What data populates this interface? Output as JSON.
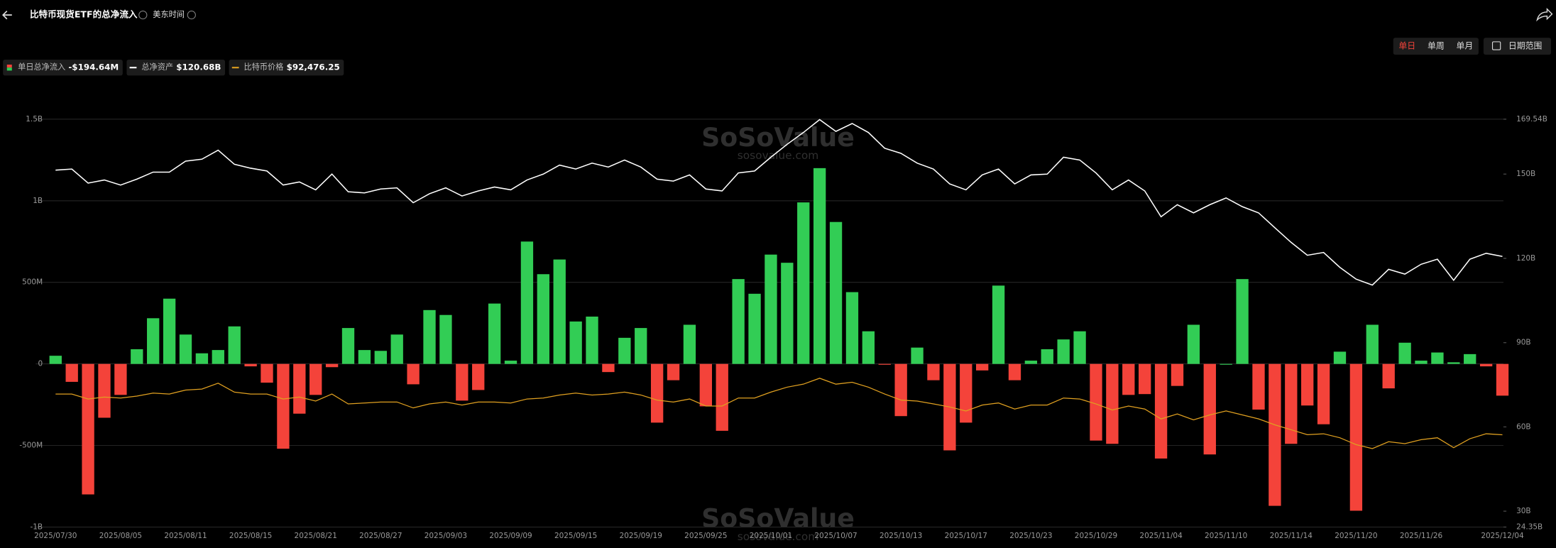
{
  "header": {
    "title": "比特币现货ETF的总净流入",
    "timezone": "美东时间"
  },
  "controls": {
    "periods": [
      "单日",
      "单周",
      "单月"
    ],
    "date_range": "日期范围"
  },
  "watermark": {
    "brand": "SoSoValue",
    "url": "sosovalue.com"
  },
  "chart_data": {
    "type": "bar",
    "categories": [
      "2025/07/30",
      null,
      null,
      null,
      "2025/08/05",
      null,
      null,
      null,
      "2025/08/11",
      null,
      null,
      null,
      "2025/08/15",
      null,
      null,
      null,
      "2025/08/21",
      null,
      null,
      null,
      "2025/08/27",
      null,
      null,
      null,
      "2025/09/03",
      null,
      null,
      null,
      "2025/09/09",
      null,
      null,
      null,
      "2025/09/15",
      null,
      null,
      null,
      "2025/09/19",
      null,
      null,
      null,
      "2025/09/25",
      null,
      null,
      null,
      "2025/10/01",
      null,
      null,
      null,
      "2025/10/07",
      null,
      null,
      null,
      "2025/10/13",
      null,
      null,
      null,
      "2025/10/17",
      null,
      null,
      null,
      "2025/10/23",
      null,
      null,
      null,
      "2025/10/29",
      null,
      null,
      null,
      "2025/11/04",
      null,
      null,
      null,
      "2025/11/10",
      null,
      null,
      null,
      "2025/11/14",
      null,
      null,
      null,
      "2025/11/20",
      null,
      null,
      null,
      "2025/11/26",
      null,
      null,
      null,
      null,
      "2025/12/04"
    ],
    "series": [
      {
        "name": "单日总净流入",
        "type": "bar",
        "axis": "y",
        "color_positive": "#32cd55",
        "color_negative": "#f4433a",
        "latest_label": "-$194.64M",
        "values": [
          50,
          -110,
          -800,
          -330,
          -190,
          90,
          280,
          400,
          180,
          65,
          85,
          230,
          -15,
          -115,
          -520,
          -305,
          -190,
          -20,
          220,
          85,
          80,
          180,
          -125,
          330,
          300,
          -225,
          -160,
          370,
          20,
          750,
          550,
          640,
          260,
          290,
          -50,
          160,
          220,
          -360,
          -100,
          240,
          -260,
          -410,
          520,
          430,
          670,
          620,
          990,
          1200,
          870,
          440,
          200,
          -5,
          -320,
          100,
          -100,
          -530,
          -360,
          -40,
          480,
          -100,
          20,
          90,
          150,
          200,
          -470,
          -490,
          -190,
          -185,
          -580,
          -135,
          240,
          -555,
          0,
          520,
          -280,
          -870,
          -490,
          -255,
          -370,
          75,
          -900,
          240,
          -150,
          130,
          20,
          70,
          10,
          60,
          -15,
          -194.64
        ]
      },
      {
        "name": "总净资产",
        "type": "line",
        "axis": "y2",
        "color": "#ffffff",
        "latest_label": "$120.68B",
        "values": [
          151.4,
          151.8,
          146.8,
          147.9,
          146.1,
          148.2,
          150.7,
          150.7,
          154.6,
          155.3,
          158.5,
          153.5,
          152.1,
          151.1,
          146.1,
          147.2,
          144.4,
          150.0,
          143.7,
          143.3,
          144.7,
          145.1,
          139.8,
          143.0,
          145.1,
          142.2,
          144.0,
          145.4,
          144.4,
          147.9,
          150.0,
          153.2,
          151.8,
          153.9,
          152.5,
          155.0,
          152.5,
          148.2,
          147.5,
          149.7,
          144.7,
          144.0,
          150.4,
          151.1,
          156.0,
          160.6,
          164.8,
          169.4,
          165.2,
          168.0,
          164.8,
          159.2,
          157.4,
          153.9,
          151.8,
          146.5,
          144.4,
          149.7,
          151.8,
          146.5,
          149.7,
          150.0,
          156.0,
          155.0,
          150.4,
          144.4,
          147.9,
          144.0,
          134.8,
          139.1,
          136.2,
          139.1,
          141.5,
          138.4,
          136.2,
          130.9,
          125.7,
          121.1,
          122.1,
          116.8,
          112.6,
          110.5,
          116.1,
          114.4,
          117.9,
          119.7,
          112.2,
          119.7,
          121.8,
          120.68
        ]
      },
      {
        "name": "比特币价格",
        "type": "line",
        "axis": "y3",
        "color": "#e0a020",
        "latest_label": "$92,476.25",
        "values": [
          118000,
          118000,
          114900,
          116100,
          115500,
          116700,
          118600,
          118000,
          120500,
          121100,
          124800,
          119200,
          118000,
          118000,
          114900,
          116100,
          113600,
          118000,
          111800,
          112400,
          113000,
          113000,
          109300,
          111800,
          113000,
          111100,
          113000,
          113000,
          112400,
          114900,
          115500,
          117400,
          118600,
          117400,
          118000,
          119200,
          117400,
          114200,
          113000,
          114900,
          110500,
          110500,
          115500,
          115500,
          119200,
          122300,
          124200,
          127900,
          124200,
          125400,
          122300,
          118000,
          114200,
          113600,
          111800,
          109900,
          107400,
          111100,
          112400,
          108600,
          111100,
          111100,
          115500,
          114900,
          111800,
          108000,
          110500,
          108600,
          102400,
          105500,
          101800,
          104900,
          107400,
          104900,
          102400,
          98700,
          95600,
          92500,
          93100,
          90600,
          86300,
          83800,
          88100,
          86900,
          89400,
          90600,
          84400,
          90000,
          93100,
          92476.25
        ]
      }
    ],
    "ylim": [
      -1000,
      1500
    ],
    "yticks": [
      {
        "value": -1000,
        "label": "-1B"
      },
      {
        "value": -500,
        "label": "-500M"
      },
      0,
      {
        "value": 500,
        "label": "500M"
      },
      {
        "value": 1000,
        "label": "1B"
      },
      {
        "value": 1500,
        "label": "1.5B"
      }
    ],
    "y2lim": [
      24.35,
      169.54
    ],
    "y2ticks": [
      {
        "value": 24.35,
        "label": "24.35B"
      },
      {
        "value": 30,
        "label": "30B"
      },
      {
        "value": 60,
        "label": "60B"
      },
      {
        "value": 90,
        "label": "90B"
      },
      {
        "value": 120,
        "label": "120B"
      },
      {
        "value": 150,
        "label": "150B"
      },
      {
        "value": 169.54,
        "label": "169.54B"
      }
    ],
    "y3lim": [
      34630,
      290270
    ],
    "grid": true
  }
}
